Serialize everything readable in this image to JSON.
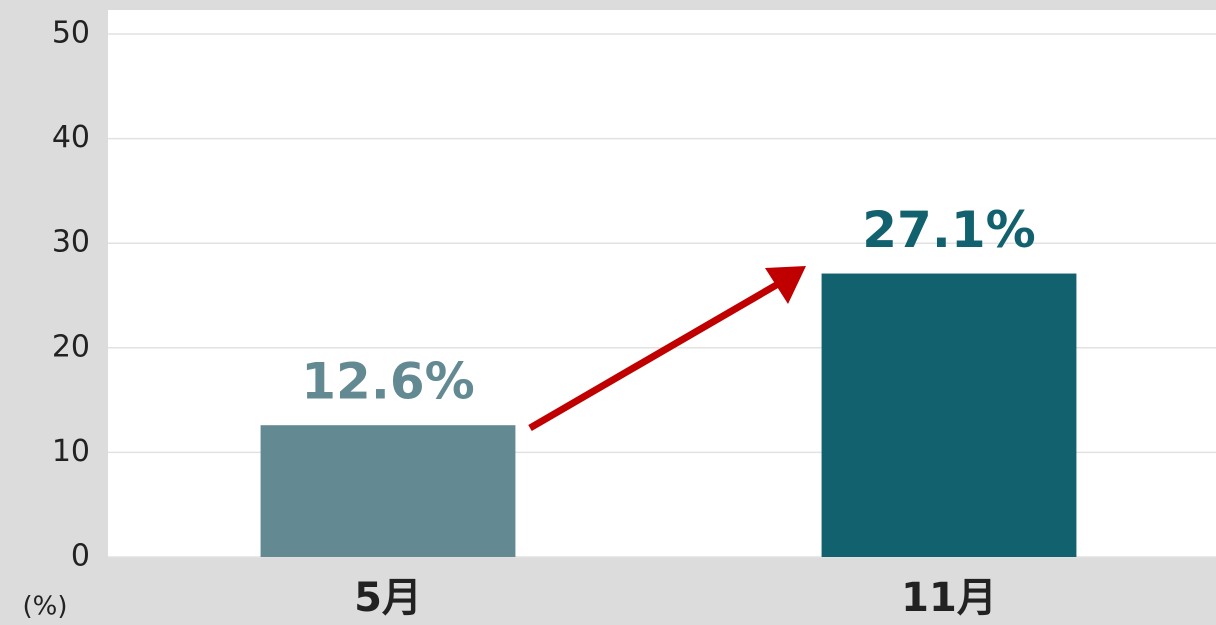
{
  "chart_data": {
    "type": "bar",
    "axis_unit": "(%)",
    "categories": [
      "5月",
      "11月"
    ],
    "values": [
      12.6,
      27.1
    ],
    "value_labels": [
      "12.6%",
      "27.1%"
    ],
    "colors": [
      "#638a93",
      "#12616f"
    ],
    "ylim": [
      0,
      50
    ],
    "yticks": [
      0,
      10,
      20,
      30,
      40,
      50
    ],
    "grid": true
  }
}
